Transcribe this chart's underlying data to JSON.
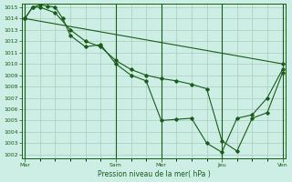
{
  "background_color": "#cceee4",
  "grid_color": "#aaccbb",
  "line_color": "#1a5c1a",
  "ylabel_min": 1002,
  "ylabel_max": 1015,
  "xlabel": "Pression niveau de la mer( hPa )",
  "xtick_labels": [
    "Mar",
    "Sam",
    "Mer",
    "Jeu",
    "Ven"
  ],
  "xtick_positions": [
    0,
    6,
    9,
    13,
    17
  ],
  "line1_x": [
    0,
    0.5,
    1,
    1.5,
    2,
    2.5,
    3,
    4,
    5,
    6,
    7,
    8,
    9,
    10,
    11,
    12,
    13,
    14,
    15,
    16,
    17
  ],
  "line1_y": [
    1014.0,
    1015.0,
    1015.2,
    1015.1,
    1015.0,
    1014.0,
    1012.5,
    1011.5,
    1011.7,
    1010.0,
    1009.0,
    1008.5,
    1005.0,
    1005.1,
    1005.2,
    1003.0,
    1002.2,
    1005.2,
    1005.5,
    1007.0,
    1009.5
  ],
  "line2_x": [
    0,
    0.5,
    1,
    2,
    3,
    4,
    5,
    6,
    7,
    8,
    9,
    10,
    11,
    12,
    13,
    14,
    15,
    16,
    17
  ],
  "line2_y": [
    1014.0,
    1015.0,
    1015.0,
    1014.5,
    1013.0,
    1012.0,
    1011.5,
    1010.3,
    1009.5,
    1009.0,
    1008.7,
    1008.5,
    1008.2,
    1007.8,
    1003.2,
    1002.3,
    1005.2,
    1005.7,
    1009.2
  ],
  "line3_x": [
    0,
    17
  ],
  "line3_y": [
    1014.0,
    1010.0
  ],
  "vline_positions": [
    0,
    6,
    9,
    13,
    17
  ]
}
